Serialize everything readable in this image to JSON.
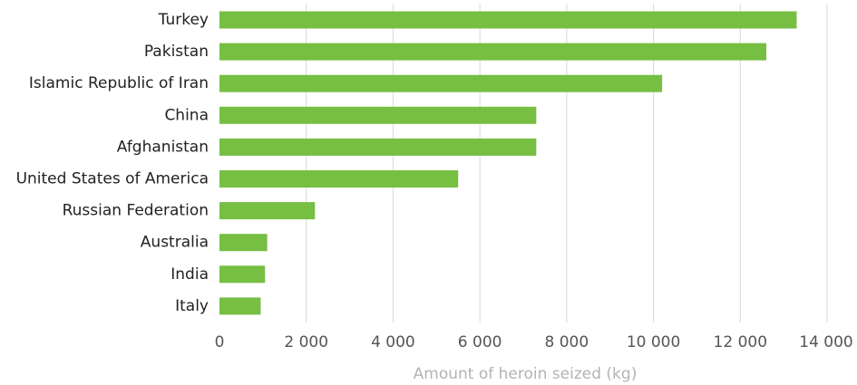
{
  "chart_data": {
    "type": "bar",
    "orientation": "horizontal",
    "categories": [
      "Turkey",
      "Pakistan",
      "Islamic Republic of Iran",
      "China",
      "Afghanistan",
      "United States of America",
      "Russian Federation",
      "Australia",
      "India",
      "Italy"
    ],
    "values": [
      13300,
      12600,
      10200,
      7300,
      7300,
      5500,
      2200,
      1100,
      1050,
      950
    ],
    "xlabel": "Amount of heroin seized (kg)",
    "xlim": [
      0,
      14000
    ],
    "x_ticks": [
      0,
      2000,
      4000,
      6000,
      8000,
      10000,
      12000,
      14000
    ],
    "x_tick_labels": [
      "0",
      "2 000",
      "4 000",
      "6 000",
      "8 000",
      "10 000",
      "12 000",
      "14 000"
    ],
    "grid": true,
    "legend": "none",
    "bar_color": "#76bf43"
  }
}
